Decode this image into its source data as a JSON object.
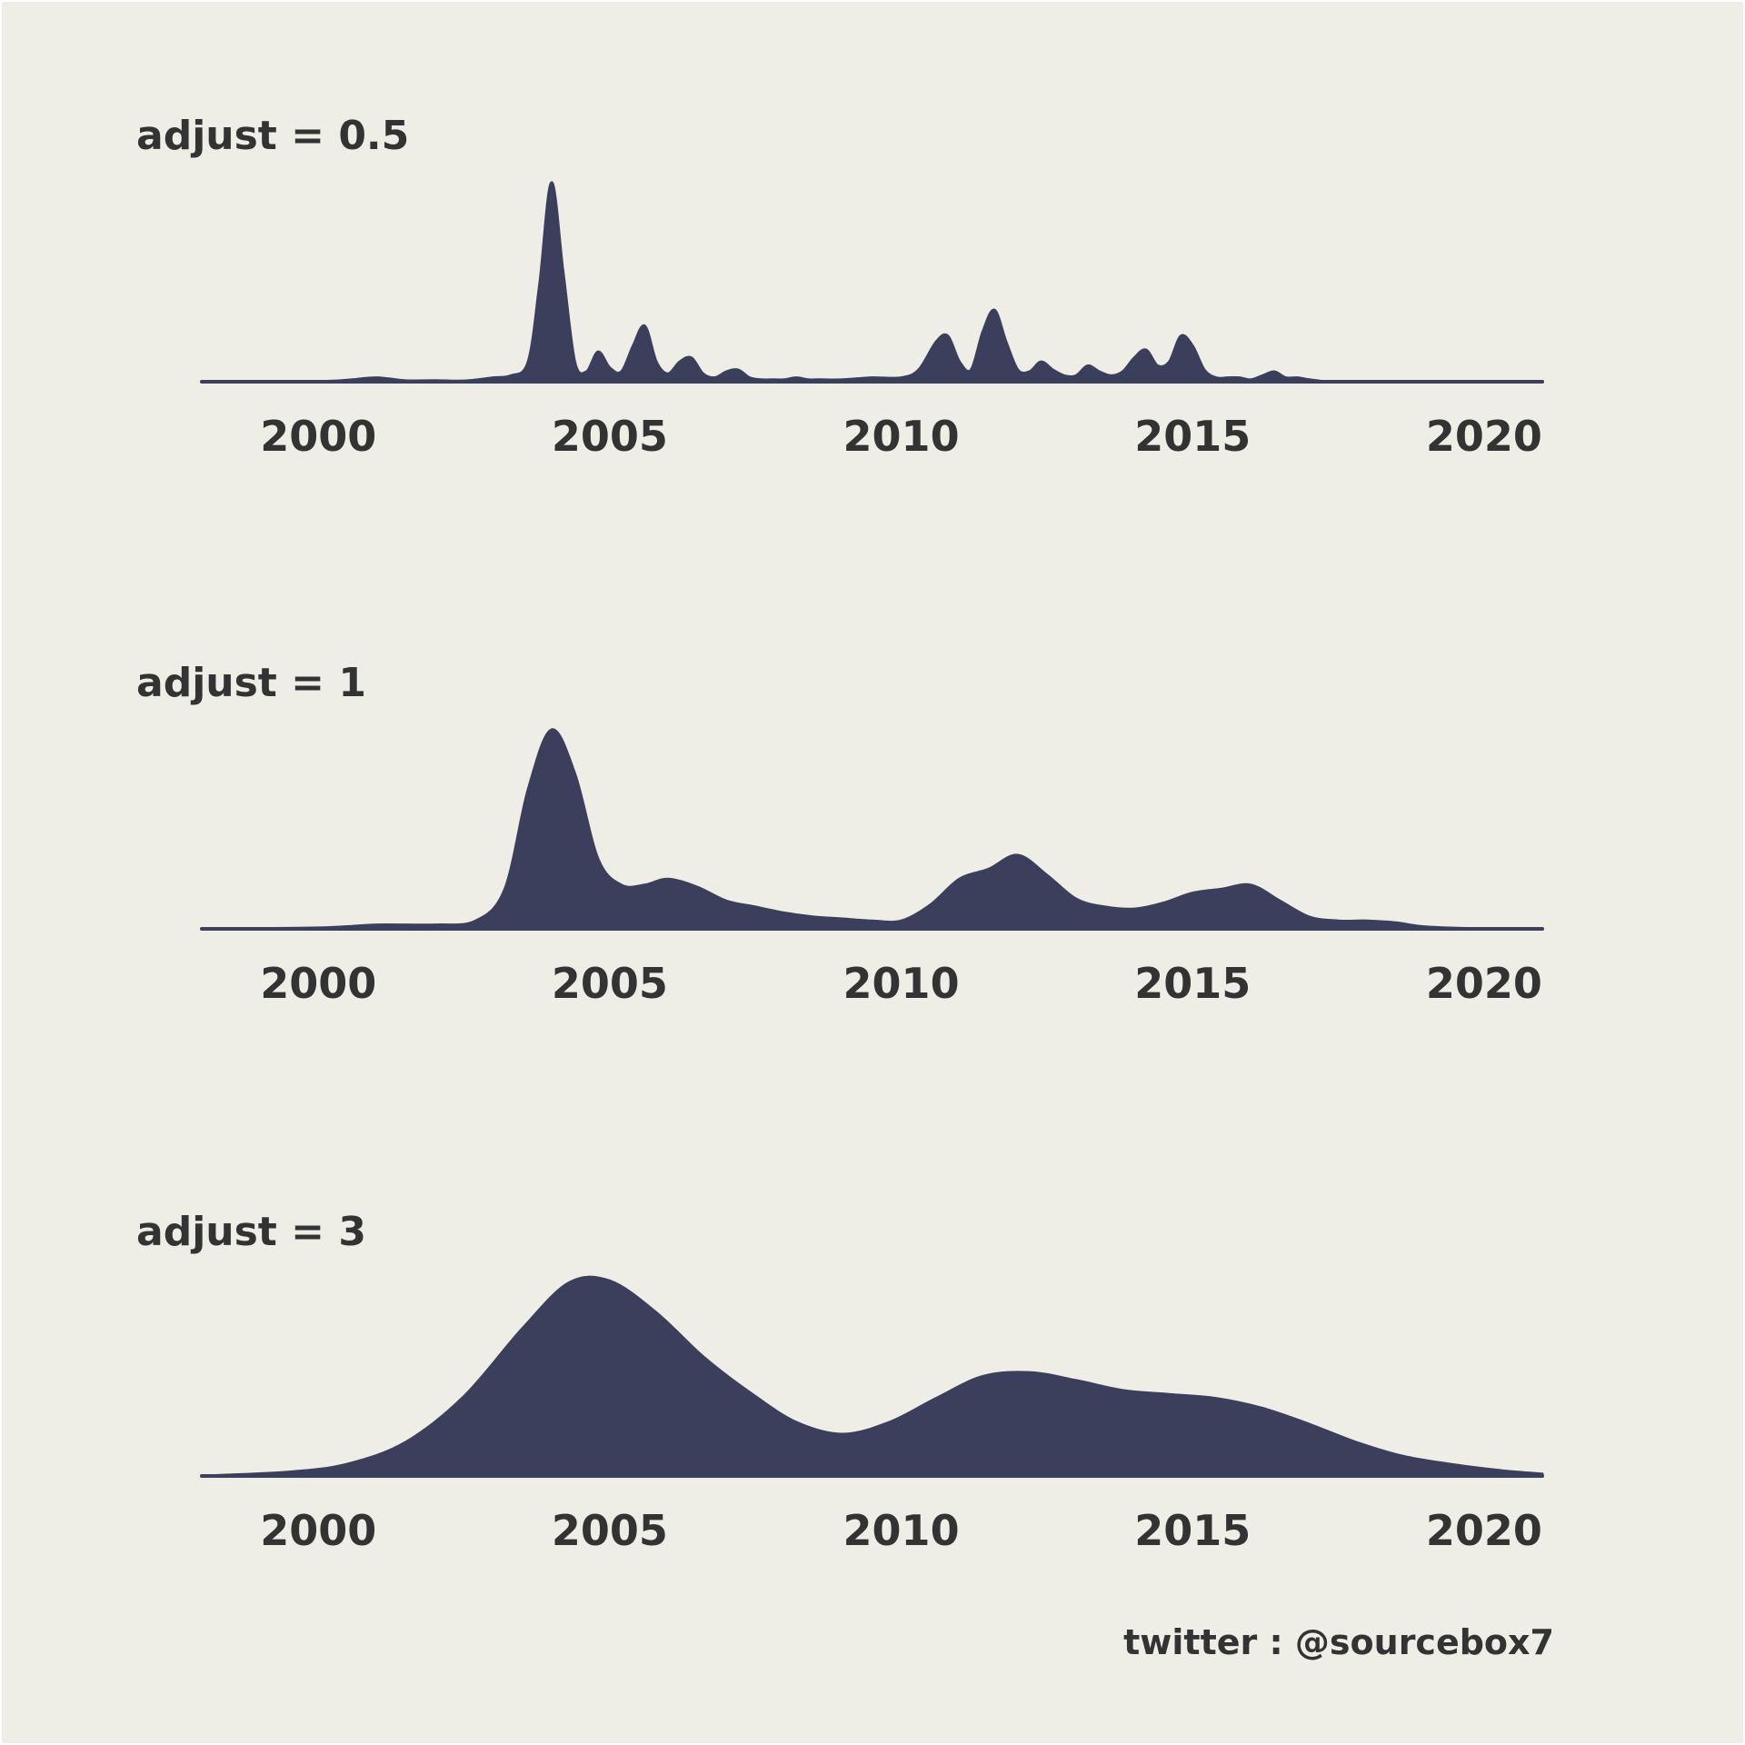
{
  "colors": {
    "background": "#eeede6",
    "fill": "#3b3f5c",
    "text": "#333333"
  },
  "credit": "twitter : @sourcebox7",
  "chart_data": [
    {
      "type": "area",
      "title": "adjust = 0.5",
      "xlim": [
        1998,
        2021
      ],
      "xticks": [
        "2000",
        "2005",
        "2010",
        "2015",
        "2020"
      ],
      "x": [
        1998,
        2000,
        2000.5,
        2001,
        2001.5,
        2002,
        2002.5,
        2003,
        2003.3,
        2003.6,
        2003.8,
        2004,
        2004.2,
        2004.4,
        2004.6,
        2004.8,
        2005,
        2005.2,
        2005.4,
        2005.6,
        2005.8,
        2006,
        2006.2,
        2006.4,
        2006.6,
        2006.8,
        2007,
        2007.2,
        2007.4,
        2007.6,
        2007.8,
        2008,
        2008.2,
        2008.4,
        2008.6,
        2009,
        2009.5,
        2010,
        2010.3,
        2010.6,
        2010.8,
        2011,
        2011.2,
        2011.4,
        2011.6,
        2011.8,
        2012,
        2012.2,
        2012.4,
        2012.6,
        2012.8,
        2013,
        2013.2,
        2013.4,
        2013.6,
        2013.8,
        2014,
        2014.2,
        2014.4,
        2014.6,
        2014.8,
        2015,
        2015.2,
        2015.4,
        2015.6,
        2015.8,
        2016,
        2016.2,
        2016.4,
        2016.6,
        2016.8,
        2017,
        2017.3,
        2017.6,
        2017.8,
        2018,
        2018.3,
        2018.6,
        2019,
        2020,
        2021
      ],
      "y": [
        0,
        0.002,
        0.008,
        0.02,
        0.005,
        0.006,
        0.004,
        0.02,
        0.03,
        0.1,
        0.5,
        1.0,
        0.55,
        0.1,
        0.05,
        0.15,
        0.07,
        0.05,
        0.18,
        0.28,
        0.1,
        0.04,
        0.1,
        0.12,
        0.04,
        0.02,
        0.05,
        0.06,
        0.02,
        0.01,
        0.01,
        0.01,
        0.02,
        0.01,
        0.01,
        0.01,
        0.02,
        0.02,
        0.06,
        0.2,
        0.23,
        0.1,
        0.06,
        0.25,
        0.36,
        0.2,
        0.06,
        0.05,
        0.1,
        0.06,
        0.03,
        0.03,
        0.08,
        0.05,
        0.03,
        0.05,
        0.12,
        0.16,
        0.08,
        0.1,
        0.23,
        0.18,
        0.06,
        0.02,
        0.02,
        0.02,
        0.01,
        0.03,
        0.05,
        0.02,
        0.02,
        0.01,
        0.0,
        0.0,
        0.0,
        0.0,
        0.0,
        0.0,
        0.0,
        0.0,
        0.0
      ],
      "ylim": [
        0,
        1.05
      ]
    },
    {
      "type": "area",
      "title": "adjust = 1",
      "xlim": [
        1998,
        2021
      ],
      "xticks": [
        "2000",
        "2005",
        "2010",
        "2015",
        "2020"
      ],
      "x": [
        1998,
        2000,
        2001,
        2002,
        2002.7,
        2003.2,
        2003.6,
        2004,
        2004.4,
        2004.8,
        2005.2,
        2005.6,
        2006,
        2006.5,
        2007,
        2007.5,
        2008,
        2008.5,
        2009,
        2009.5,
        2010,
        2010.5,
        2011,
        2011.5,
        2012,
        2012.5,
        2013,
        2013.5,
        2014,
        2014.5,
        2015,
        2015.5,
        2016,
        2016.5,
        2017,
        2017.5,
        2018,
        2018.5,
        2019,
        2020,
        2021
      ],
      "y": [
        0,
        0.005,
        0.02,
        0.02,
        0.04,
        0.2,
        0.7,
        1.0,
        0.78,
        0.35,
        0.22,
        0.22,
        0.25,
        0.21,
        0.14,
        0.11,
        0.08,
        0.06,
        0.05,
        0.04,
        0.04,
        0.12,
        0.25,
        0.3,
        0.37,
        0.27,
        0.15,
        0.11,
        0.1,
        0.13,
        0.18,
        0.2,
        0.22,
        0.14,
        0.06,
        0.04,
        0.04,
        0.03,
        0.01,
        0.0,
        0.0
      ],
      "ylim": [
        0,
        1.05
      ]
    },
    {
      "type": "area",
      "title": "adjust = 3",
      "xlim": [
        1998,
        2021
      ],
      "xticks": [
        "2000",
        "2005",
        "2010",
        "2015",
        "2020"
      ],
      "x": [
        1998,
        1999.5,
        2000.5,
        2001.5,
        2002.5,
        2003.5,
        2004.3,
        2005,
        2005.8,
        2006.6,
        2007.4,
        2008.2,
        2009,
        2009.8,
        2010.6,
        2011.4,
        2012.2,
        2013,
        2013.8,
        2014.6,
        2015.4,
        2016.2,
        2017,
        2017.8,
        2018.6,
        2019.4,
        2020.2,
        2021
      ],
      "y": [
        0.0,
        0.02,
        0.06,
        0.17,
        0.4,
        0.74,
        0.97,
        0.98,
        0.82,
        0.6,
        0.42,
        0.27,
        0.21,
        0.27,
        0.39,
        0.5,
        0.52,
        0.48,
        0.43,
        0.41,
        0.39,
        0.34,
        0.26,
        0.17,
        0.1,
        0.06,
        0.03,
        0.01
      ],
      "ylim": [
        0,
        1.05
      ]
    }
  ]
}
